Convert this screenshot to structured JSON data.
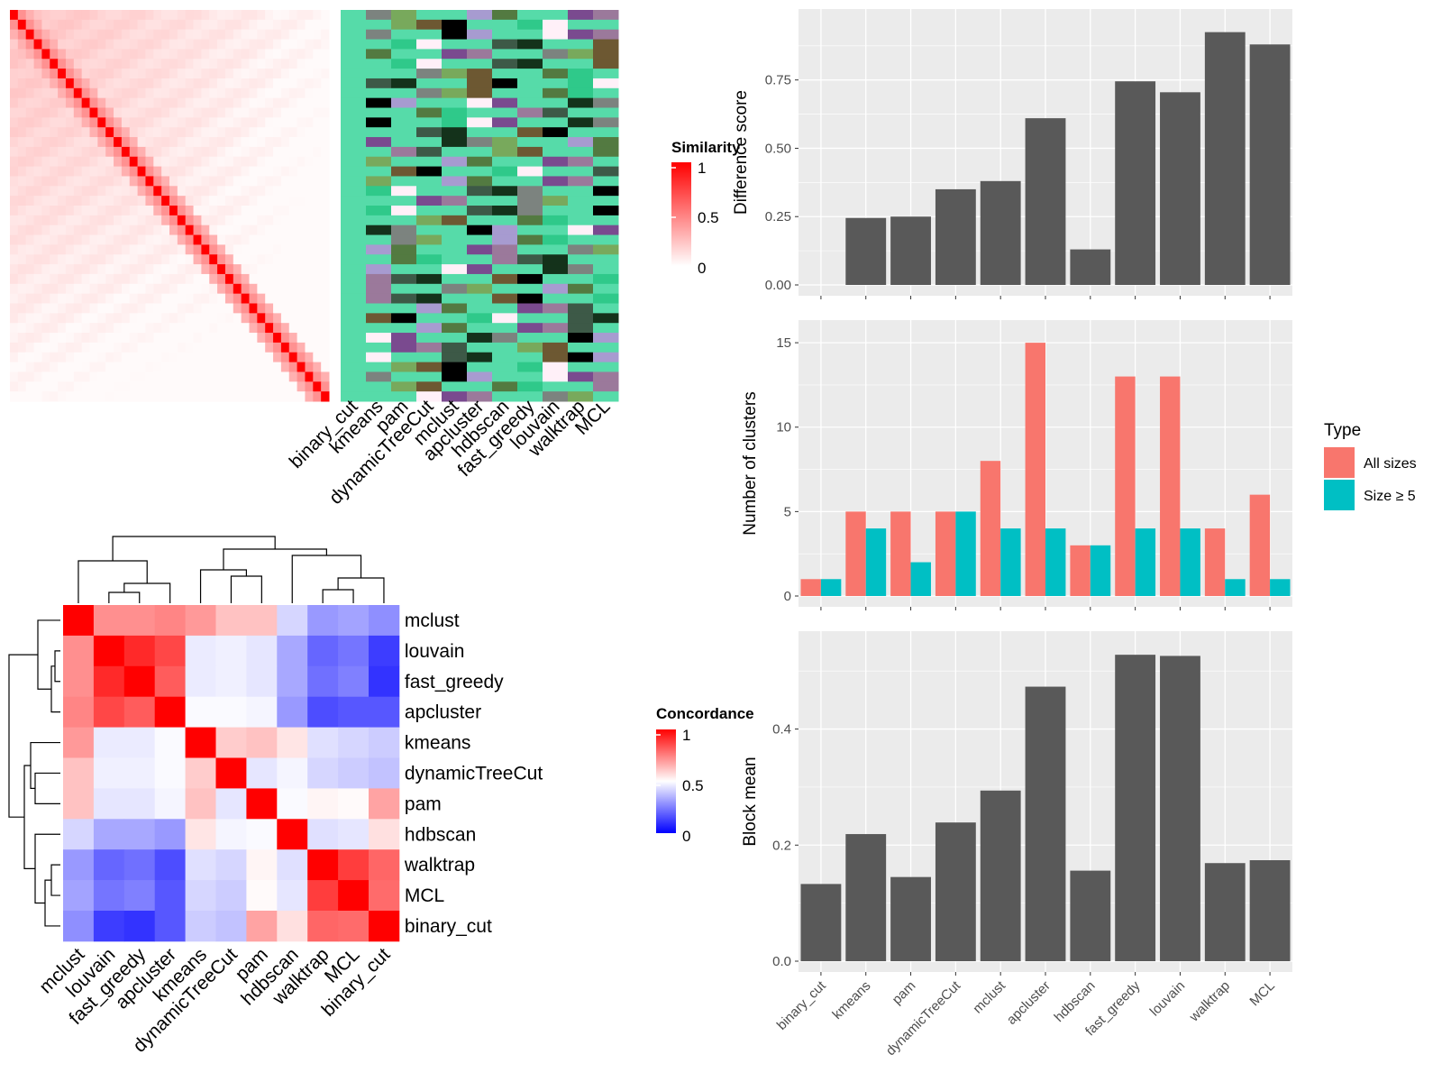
{
  "colors": {
    "sim_low": "#ffffff",
    "sim_high": "#ff0000",
    "conc_low": "#0000ff",
    "conc_mid": "#ffffff",
    "conc_high": "#ff0000",
    "bar": "#595959",
    "panel_bg": "#ebebeb",
    "grid": "#ffffff",
    "all_sizes": "#f8766d",
    "size_ge5": "#00bfc4"
  },
  "chart_data": [
    {
      "type": "heatmap",
      "name_text": "similarity-heatmap",
      "legend_title": "Similarity",
      "legend_ticks": [
        "1",
        "0.5",
        "0"
      ],
      "size": 40,
      "annotation_columns": [
        "binary_cut",
        "kmeans",
        "pam",
        "dynamicTreeCut",
        "mclust",
        "apcluster",
        "hdbscan",
        "fast_greedy",
        "louvain",
        "walktrap",
        "MCL"
      ]
    },
    {
      "type": "heatmap",
      "legend_title": "Concordance",
      "legend_ticks": [
        "1",
        "0.5",
        "0"
      ],
      "rows": [
        "mclust",
        "louvain",
        "fast_greedy",
        "apcluster",
        "kmeans",
        "dynamicTreeCut",
        "pam",
        "hdbscan",
        "walktrap",
        "MCL",
        "binary_cut"
      ],
      "cols": [
        "mclust",
        "louvain",
        "fast_greedy",
        "apcluster",
        "kmeans",
        "dynamicTreeCut",
        "pam",
        "hdbscan",
        "walktrap",
        "MCL",
        "binary_cut"
      ],
      "values": [
        [
          1.0,
          0.72,
          0.72,
          0.74,
          0.7,
          0.62,
          0.62,
          0.42,
          0.3,
          0.32,
          0.28
        ],
        [
          0.72,
          1.0,
          0.92,
          0.86,
          0.46,
          0.47,
          0.45,
          0.33,
          0.2,
          0.23,
          0.12
        ],
        [
          0.72,
          0.92,
          1.0,
          0.82,
          0.46,
          0.47,
          0.45,
          0.33,
          0.22,
          0.25,
          0.1
        ],
        [
          0.74,
          0.86,
          0.82,
          1.0,
          0.49,
          0.49,
          0.48,
          0.3,
          0.15,
          0.17,
          0.17
        ],
        [
          0.7,
          0.46,
          0.46,
          0.49,
          1.0,
          0.6,
          0.62,
          0.55,
          0.44,
          0.42,
          0.4
        ],
        [
          0.62,
          0.47,
          0.47,
          0.49,
          0.6,
          1.0,
          0.45,
          0.48,
          0.42,
          0.4,
          0.38
        ],
        [
          0.62,
          0.45,
          0.45,
          0.48,
          0.62,
          0.45,
          1.0,
          0.49,
          0.52,
          0.51,
          0.68
        ],
        [
          0.42,
          0.33,
          0.33,
          0.3,
          0.55,
          0.48,
          0.49,
          1.0,
          0.44,
          0.45,
          0.56
        ],
        [
          0.3,
          0.2,
          0.22,
          0.15,
          0.44,
          0.42,
          0.52,
          0.44,
          1.0,
          0.88,
          0.8
        ],
        [
          0.32,
          0.23,
          0.25,
          0.17,
          0.42,
          0.4,
          0.51,
          0.45,
          0.88,
          1.0,
          0.79
        ],
        [
          0.28,
          0.12,
          0.1,
          0.17,
          0.4,
          0.38,
          0.68,
          0.56,
          0.8,
          0.79,
          1.0
        ]
      ]
    },
    {
      "type": "bar",
      "categories": [
        "binary_cut",
        "kmeans",
        "pam",
        "dynamicTreeCut",
        "mclust",
        "apcluster",
        "hdbscan",
        "fast_greedy",
        "louvain",
        "walktrap",
        "MCL"
      ],
      "values": [
        0,
        0.245,
        0.25,
        0.35,
        0.38,
        0.61,
        0.13,
        0.745,
        0.705,
        0.925,
        0.88
      ],
      "ylabel": "Difference score",
      "ylim": [
        0,
        0.97
      ],
      "yticks": [
        "0.00",
        "0.25",
        "0.50",
        "0.75"
      ]
    },
    {
      "type": "bar",
      "categories": [
        "binary_cut",
        "kmeans",
        "pam",
        "dynamicTreeCut",
        "mclust",
        "apcluster",
        "hdbscan",
        "fast_greedy",
        "louvain",
        "walktrap",
        "MCL"
      ],
      "series": [
        {
          "name": "All sizes",
          "values": [
            1,
            5,
            5,
            5,
            8,
            15,
            3,
            13,
            13,
            4,
            6
          ]
        },
        {
          "name": "Size ≥ 5",
          "values": [
            1,
            4,
            2,
            5,
            4,
            4,
            3,
            4,
            4,
            1,
            1
          ]
        }
      ],
      "ylabel": "Number of clusters",
      "ylim": [
        0,
        15.7
      ],
      "yticks": [
        "0",
        "5",
        "10",
        "15"
      ],
      "legend_title": "Type",
      "legend_position": "right"
    },
    {
      "type": "bar",
      "categories": [
        "binary_cut",
        "kmeans",
        "pam",
        "dynamicTreeCut",
        "mclust",
        "apcluster",
        "hdbscan",
        "fast_greedy",
        "louvain",
        "walktrap",
        "MCL"
      ],
      "values": [
        0.133,
        0.219,
        0.145,
        0.239,
        0.294,
        0.473,
        0.156,
        0.528,
        0.526,
        0.169,
        0.174
      ],
      "ylabel": "Block mean",
      "ylim": [
        0,
        0.55
      ],
      "yticks": [
        "0.0",
        "0.2",
        "0.4"
      ]
    }
  ]
}
